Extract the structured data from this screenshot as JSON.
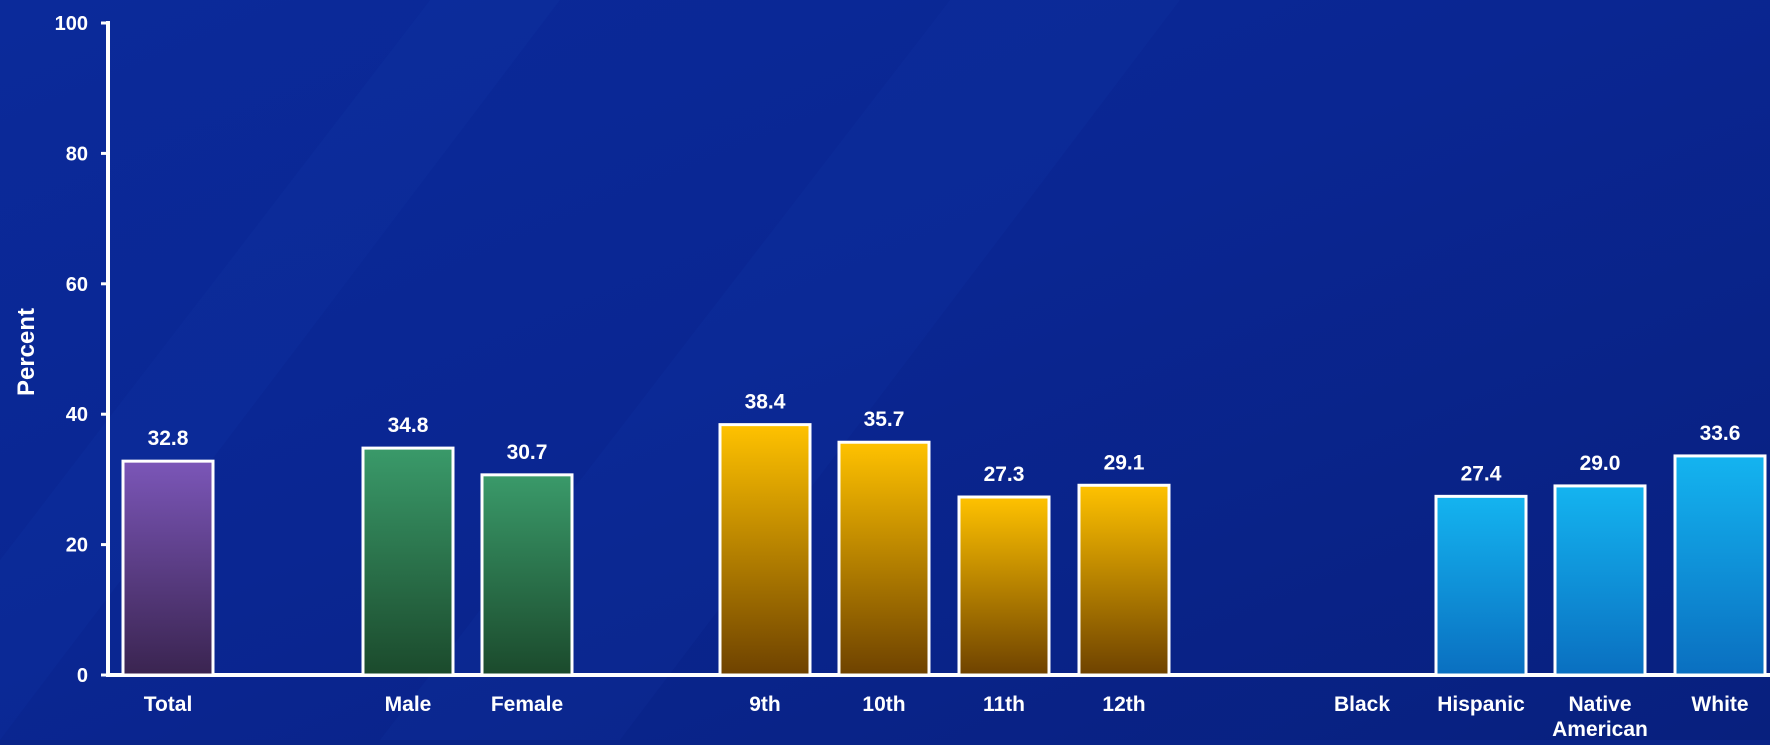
{
  "chart_data": {
    "type": "bar",
    "title": "",
    "xlabel": "",
    "ylabel": "Percent",
    "ylim": [
      0,
      100
    ],
    "yticks": [
      0,
      20,
      40,
      60,
      80,
      100
    ],
    "grid": false,
    "categories": [
      {
        "label": [
          "Total"
        ],
        "value": 32.8,
        "group": "total"
      },
      {
        "label": [
          "Male"
        ],
        "value": 34.8,
        "group": "sex"
      },
      {
        "label": [
          "Female"
        ],
        "value": 30.7,
        "group": "sex"
      },
      {
        "label": [
          "9th"
        ],
        "value": 38.4,
        "group": "grade"
      },
      {
        "label": [
          "10th"
        ],
        "value": 35.7,
        "group": "grade"
      },
      {
        "label": [
          "11th"
        ],
        "value": 27.3,
        "group": "grade"
      },
      {
        "label": [
          "12th"
        ],
        "value": 29.1,
        "group": "grade"
      },
      {
        "label": [
          "Black"
        ],
        "value": null,
        "group": "race"
      },
      {
        "label": [
          "Hispanic"
        ],
        "value": 27.4,
        "group": "race"
      },
      {
        "label": [
          "Native",
          "American"
        ],
        "value": 29.0,
        "group": "race"
      },
      {
        "label": [
          "White"
        ],
        "value": 33.6,
        "group": "race"
      }
    ],
    "group_colors": {
      "total": [
        "#7b56b8",
        "#3a2450"
      ],
      "sex": [
        "#3a9a6a",
        "#1b4a2c"
      ],
      "grade": [
        "#ffc200",
        "#6e4200"
      ],
      "race": [
        "#14b4f0",
        "#0a6fc0"
      ]
    }
  }
}
